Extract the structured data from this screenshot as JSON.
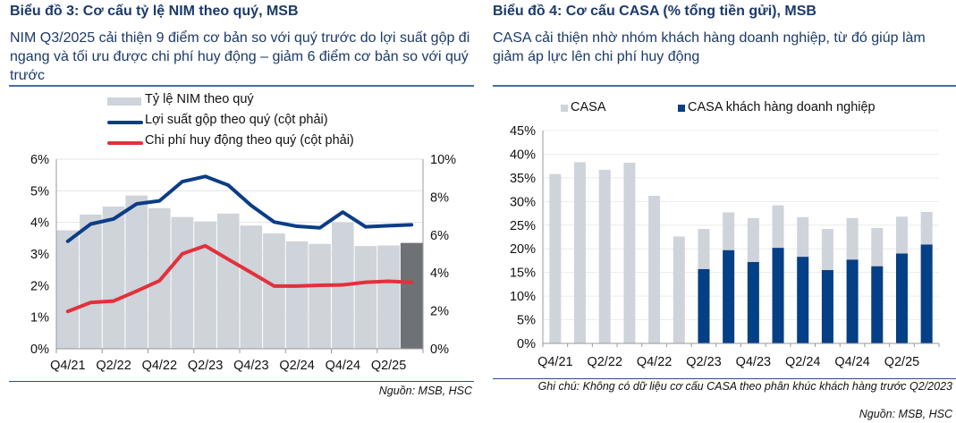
{
  "left": {
    "title": "Biểu đồ 3: Cơ cấu tỷ lệ NIM theo quý, MSB",
    "subtitle": "NIM Q3/2025 cải thiện 9 điểm cơ bản so với quý trước do lợi suất gộp đi ngang và tối ưu được chi phí huy động – giảm 6 điểm cơ bản so với quý trước",
    "source": "Nguồn: MSB, HSC"
  },
  "right": {
    "title": "Biểu đồ 4: Cơ cấu CASA (% tổng tiền gửi), MSB",
    "subtitle": "CASA cải thiện nhờ nhóm khách hàng doanh nghiệp, từ đó giúp làm giảm áp lực lên chi phí huy động",
    "note": "Ghi chú: Không có dữ liệu cơ cấu CASA theo phân khúc khách hàng trước Q2/2023",
    "source": "Nguồn: MSB, HSC"
  },
  "chart_data": [
    {
      "type": "bar+line",
      "categories": [
        "Q4/21",
        "Q1/22",
        "Q2/22",
        "Q3/22",
        "Q4/22",
        "Q1/23",
        "Q2/23",
        "Q3/23",
        "Q4/23",
        "Q1/24",
        "Q2/24",
        "Q3/24",
        "Q4/24",
        "Q1/25",
        "Q2/25",
        "Q3/25"
      ],
      "tick_labels": [
        "Q4/21",
        "Q2/22",
        "Q4/22",
        "Q2/23",
        "Q4/23",
        "Q2/24",
        "Q4/24",
        "Q2/25"
      ],
      "y_left": {
        "range": [
          0,
          6
        ],
        "ticks": [
          "0%",
          "1%",
          "2%",
          "3%",
          "4%",
          "5%",
          "6%"
        ]
      },
      "y_right": {
        "range": [
          0,
          10
        ],
        "ticks": [
          "0%",
          "2%",
          "4%",
          "6%",
          "8%",
          "10%"
        ]
      },
      "legend_position": "top",
      "grid": true,
      "highlight_last_bar": true,
      "colors": {
        "bar": "#cfd3da",
        "bar_highlight": "#6e7277",
        "yield": "#0b3d86",
        "cost": "#e2313a"
      },
      "series": [
        {
          "name": "Tỷ lệ NIM theo quý",
          "axis": "left",
          "kind": "bar",
          "values": [
            3.75,
            4.25,
            4.5,
            4.85,
            4.45,
            4.17,
            4.03,
            4.28,
            3.9,
            3.65,
            3.4,
            3.32,
            4.0,
            3.25,
            3.27,
            3.35
          ]
        },
        {
          "name": "Lợi suất gộp theo quý (cột phải)",
          "axis": "right",
          "kind": "line",
          "values": [
            5.67,
            6.58,
            6.85,
            7.64,
            7.8,
            8.82,
            9.09,
            8.63,
            7.56,
            6.69,
            6.46,
            6.38,
            7.21,
            6.43,
            6.49,
            6.54
          ]
        },
        {
          "name": "Chi phí huy động theo quý (cột phải)",
          "axis": "right",
          "kind": "line",
          "values": [
            1.97,
            2.44,
            2.52,
            3.04,
            3.59,
            5.01,
            5.43,
            4.72,
            4.02,
            3.31,
            3.31,
            3.35,
            3.37,
            3.51,
            3.56,
            3.5
          ]
        }
      ]
    },
    {
      "type": "bar",
      "categories": [
        "Q4/21",
        "Q1/22",
        "Q2/22",
        "Q3/22",
        "Q4/22",
        "Q1/23",
        "Q2/23",
        "Q3/23",
        "Q4/23",
        "Q1/24",
        "Q2/24",
        "Q3/24",
        "Q4/24",
        "Q1/25",
        "Q2/25",
        "Q3/25"
      ],
      "tick_labels": [
        "Q4/21",
        "Q2/22",
        "Q4/22",
        "Q2/23",
        "Q4/23",
        "Q2/24",
        "Q4/24",
        "Q2/25"
      ],
      "y": {
        "range": [
          0,
          45
        ],
        "ticks": [
          "0%",
          "5%",
          "10%",
          "15%",
          "20%",
          "25%",
          "30%",
          "35%",
          "40%",
          "45%"
        ]
      },
      "legend_position": "top",
      "grid": true,
      "colors": {
        "casa": "#cfd3da",
        "corporate": "#053f85"
      },
      "series": [
        {
          "name": "CASA",
          "values": [
            35.8,
            38.3,
            36.7,
            38.2,
            31.2,
            22.6,
            24.2,
            27.7,
            26.5,
            29.2,
            26.7,
            24.2,
            26.5,
            24.4,
            26.8,
            27.8
          ]
        },
        {
          "name": "CASA khách hàng doanh nghiệp",
          "values": [
            null,
            null,
            null,
            null,
            null,
            null,
            15.7,
            19.7,
            17.2,
            20.2,
            18.3,
            15.5,
            17.7,
            16.3,
            19.0,
            20.9
          ]
        }
      ]
    }
  ]
}
